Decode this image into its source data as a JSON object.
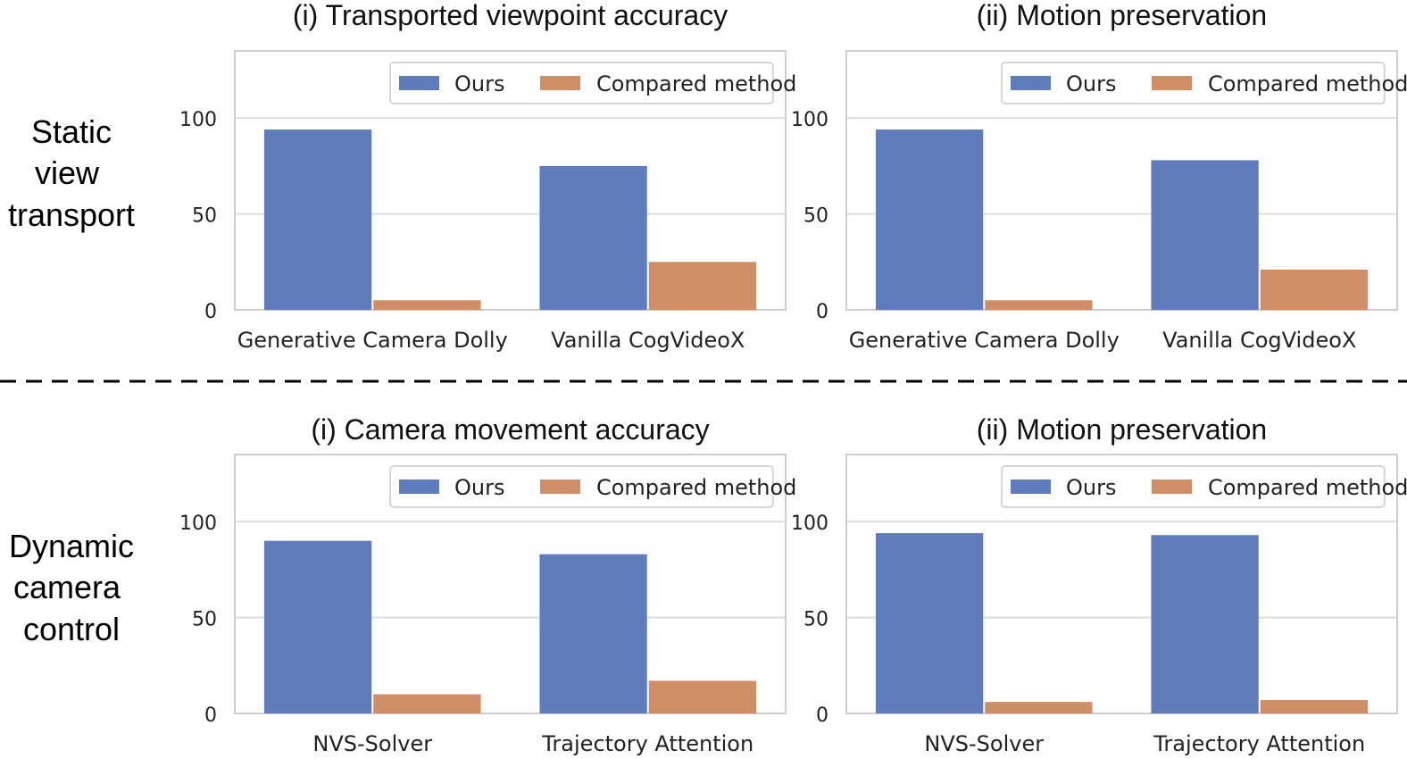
{
  "rows": [
    {
      "label_lines": [
        "Static",
        "view",
        "transport"
      ]
    },
    {
      "label_lines": [
        "Dynamic",
        "camera",
        "control"
      ]
    }
  ],
  "colors": {
    "ours": "#5f7dbd",
    "compared": "#d08e67",
    "grid": "#dedede",
    "frame": "#cfcfcf"
  },
  "chart_data": [
    {
      "type": "bar",
      "title": "(i) Transported viewpoint accuracy",
      "categories": [
        "Generative Camera Dolly",
        "Vanilla CogVideoX"
      ],
      "series": [
        {
          "name": "Ours",
          "values": [
            94,
            75
          ]
        },
        {
          "name": "Compared method",
          "values": [
            5,
            25
          ]
        }
      ],
      "yticks": [
        0,
        50,
        100
      ],
      "ylim": [
        0,
        135
      ],
      "legend": "top-right",
      "grid": true
    },
    {
      "type": "bar",
      "title": "(ii) Motion preservation",
      "categories": [
        "Generative Camera Dolly",
        "Vanilla CogVideoX"
      ],
      "series": [
        {
          "name": "Ours",
          "values": [
            94,
            78
          ]
        },
        {
          "name": "Compared method",
          "values": [
            5,
            21
          ]
        }
      ],
      "yticks": [
        0,
        50,
        100
      ],
      "ylim": [
        0,
        135
      ],
      "legend": "top-right",
      "grid": true
    },
    {
      "type": "bar",
      "title": "(i) Camera movement accuracy",
      "categories": [
        "NVS-Solver",
        "Trajectory Attention"
      ],
      "series": [
        {
          "name": "Ours",
          "values": [
            90,
            83
          ]
        },
        {
          "name": "Compared method",
          "values": [
            10,
            17
          ]
        }
      ],
      "yticks": [
        0,
        50,
        100
      ],
      "ylim": [
        0,
        135
      ],
      "legend": "top-right",
      "grid": true
    },
    {
      "type": "bar",
      "title": "(ii) Motion preservation",
      "categories": [
        "NVS-Solver",
        "Trajectory Attention"
      ],
      "series": [
        {
          "name": "Ours",
          "values": [
            94,
            93
          ]
        },
        {
          "name": "Compared method",
          "values": [
            6,
            7
          ]
        }
      ],
      "yticks": [
        0,
        50,
        100
      ],
      "ylim": [
        0,
        135
      ],
      "legend": "top-right",
      "grid": true
    }
  ]
}
